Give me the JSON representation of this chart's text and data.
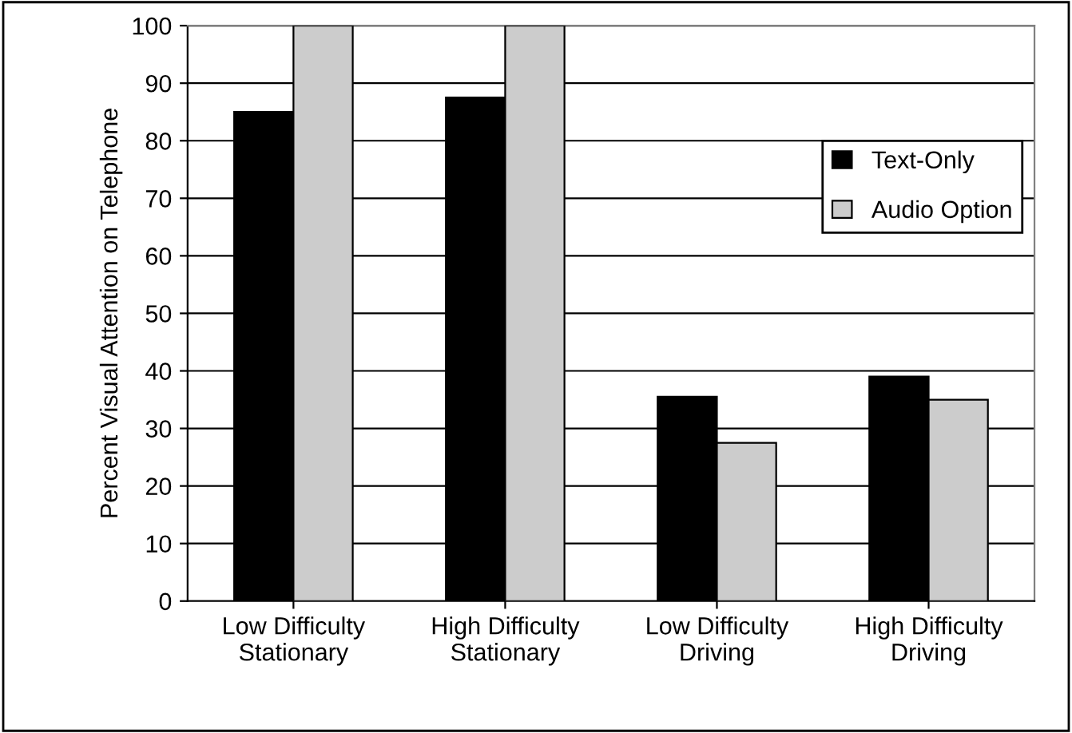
{
  "chart_data": {
    "type": "bar",
    "ylabel": "Percent Visual Attention on Telephone",
    "categories": [
      "Low Difficulty\nStationary",
      "High Difficulty\nStationary",
      "Low Difficulty\nDriving",
      "High Difficulty\nDriving"
    ],
    "series": [
      {
        "name": "Text-Only",
        "color": "#000000",
        "values": [
          85,
          87.5,
          35.5,
          39
        ]
      },
      {
        "name": "Audio Option",
        "color": "#cccccc",
        "values": [
          100,
          100,
          27.5,
          35
        ]
      }
    ],
    "ylim": [
      0,
      100
    ],
    "yticks": [
      0,
      10,
      20,
      30,
      40,
      50,
      60,
      70,
      80,
      90,
      100
    ],
    "grid": "y",
    "legend": "right"
  }
}
